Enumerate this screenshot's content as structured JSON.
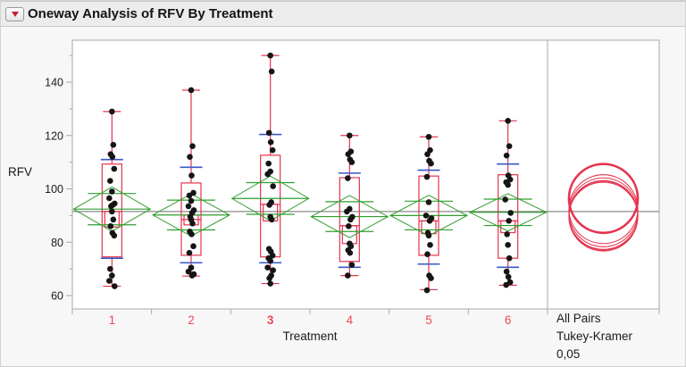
{
  "window": {
    "title": "Oneway Analysis of RFV By Treatment"
  },
  "icons": {
    "disclosure": "red-triangle-down"
  },
  "colors": {
    "page_bg": "#f7f7f7",
    "titlebar_bg": "#ececec",
    "frame": "#a9a9a9",
    "plot_bg": "#ffffff",
    "box_red": "#e5334d",
    "diamond_green": "#2e9e2e",
    "stddev_blue": "#3a57c8",
    "grand_mean_gray": "#8a8a8a",
    "point_black": "#151515",
    "x_label_red": "#ee4757",
    "axis_text": "#1a1a1a",
    "circle_red": "#e5334d"
  },
  "chart_data": {
    "type": "scatter",
    "subtype": "oneway-comparison-boxplot",
    "title": "Oneway Analysis of RFV By Treatment",
    "xlabel": "Treatment",
    "ylabel": "RFV",
    "ylim": [
      53,
      157
    ],
    "yticks_major": [
      60,
      80,
      100,
      120,
      140
    ],
    "yticks_minor": [
      70,
      90,
      110,
      130,
      150
    ],
    "categories": [
      "1",
      "2",
      "3",
      "4",
      "5",
      "6"
    ],
    "selected_category": "3",
    "grand_mean": 91.5,
    "groups": [
      {
        "label": "1",
        "mean": 92.4,
        "ci_half": 8.3,
        "median": 91.5,
        "q1": 74.5,
        "q3": 109.3,
        "whisker_low": 63.5,
        "whisker_high": 129,
        "sd_low": 74.0,
        "sd_high": 111.0,
        "bracket": [
          85.7,
          91.5
        ],
        "points": [
          129,
          116.5,
          113,
          112,
          107.5,
          103,
          99,
          96.5,
          94.5,
          94,
          93.5,
          91.5,
          88.5,
          86,
          83.5,
          82.5,
          70,
          67.5,
          65.5,
          63.5
        ]
      },
      {
        "label": "2",
        "mean": 90.2,
        "ci_half": 7.9,
        "median": 88.5,
        "q1": 75.1,
        "q3": 102.2,
        "whisker_low": 67.3,
        "whisker_high": 137,
        "sd_low": 72.3,
        "sd_high": 108.1,
        "bracket": [
          86.5,
          90.2
        ],
        "points": [
          137,
          116,
          112,
          105,
          98.5,
          97.5,
          95.5,
          93.5,
          92,
          91,
          89.5,
          88.5,
          87,
          84,
          83,
          78.5,
          76,
          70.5,
          69,
          68,
          67.5
        ]
      },
      {
        "label": "3",
        "mean": 96.4,
        "ci_half": 8.4,
        "median": 94.2,
        "q1": 74.5,
        "q3": 112.6,
        "whisker_low": 64.5,
        "whisker_high": 150,
        "sd_low": 72.3,
        "sd_high": 120.4,
        "bracket": [
          88.0,
          94.2
        ],
        "points": [
          150,
          144,
          121,
          117.5,
          114.5,
          109.5,
          106.5,
          105.5,
          101,
          95,
          94,
          89.5,
          88.5,
          77.5,
          76.5,
          75,
          74,
          73,
          70.5,
          69.5,
          67.5,
          66.5,
          64.5
        ]
      },
      {
        "label": "4",
        "mean": 89.6,
        "ci_half": 7.9,
        "median": 86.2,
        "q1": 72.8,
        "q3": 104.2,
        "whisker_low": 67.5,
        "whisker_high": 120,
        "sd_low": 70.6,
        "sd_high": 105.9,
        "bracket": [
          79.5,
          86.2
        ],
        "points": [
          120,
          114,
          113,
          111,
          110,
          104,
          92.5,
          91.5,
          89.5,
          88.5,
          86,
          79.5,
          78.5,
          77,
          76,
          71.5,
          67.5
        ]
      },
      {
        "label": "5",
        "mean": 90.0,
        "ci_half": 7.6,
        "median": 88.0,
        "q1": 75.1,
        "q3": 104.8,
        "whisker_low": 62.2,
        "whisker_high": 119.5,
        "sd_low": 71.8,
        "sd_high": 107.0,
        "bracket": [
          83.2,
          88.0
        ],
        "points": [
          119.5,
          114.5,
          113,
          110.5,
          109.5,
          104.5,
          95,
          90,
          89,
          88,
          83.5,
          82.5,
          79,
          75.5,
          67.5,
          66.5,
          62
        ]
      },
      {
        "label": "6",
        "mean": 91.2,
        "ci_half": 7.0,
        "median": 88.0,
        "q1": 74.0,
        "q3": 105.3,
        "whisker_low": 63.9,
        "whisker_high": 125.5,
        "sd_low": 70.6,
        "sd_high": 109.3,
        "bracket": [
          83.6,
          88.0
        ],
        "points": [
          125.5,
          116,
          112.5,
          105,
          103.5,
          102.5,
          101.5,
          96,
          91,
          88,
          83,
          79,
          74,
          69,
          67,
          65,
          64
        ]
      }
    ],
    "comparison": {
      "labels": [
        "All Pairs",
        "Tukey-Kramer",
        "0,05"
      ],
      "radius_rfv_units": 12.9,
      "circles": [
        {
          "group": "1",
          "mean": 92.4,
          "bold": false
        },
        {
          "group": "2",
          "mean": 90.2,
          "bold": false
        },
        {
          "group": "3",
          "mean": 96.4,
          "bold": true
        },
        {
          "group": "4",
          "mean": 89.6,
          "bold": false
        },
        {
          "group": "5",
          "mean": 90.0,
          "bold": false
        },
        {
          "group": "6",
          "mean": 91.2,
          "bold": false
        }
      ]
    }
  }
}
